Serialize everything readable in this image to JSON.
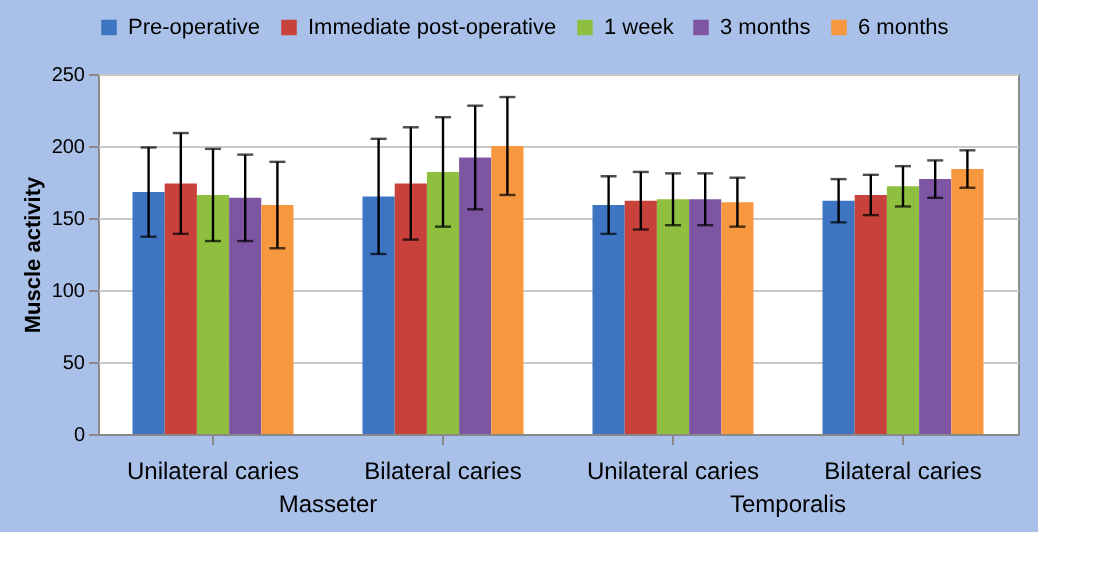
{
  "chart_data": {
    "type": "bar",
    "ylabel": "Muscle activity",
    "categories": [
      "Unilateral caries",
      "Bilateral caries",
      "Unilateral caries",
      "Bilateral caries"
    ],
    "annotations": [
      "Masseter",
      "Temporalis"
    ],
    "series": [
      {
        "name": "Pre-operative",
        "color": "#3d75c2",
        "values": [
          168,
          165,
          159,
          162
        ],
        "errors": [
          31,
          40,
          20,
          15
        ]
      },
      {
        "name": "Immediate post-operative",
        "color": "#c8413b",
        "values": [
          174,
          174,
          162,
          166
        ],
        "errors": [
          35,
          39,
          20,
          14
        ]
      },
      {
        "name": "1 week",
        "color": "#8fbf3f",
        "values": [
          166,
          182,
          163,
          172
        ],
        "errors": [
          32,
          38,
          18,
          14
        ]
      },
      {
        "name": "3 months",
        "color": "#7e55a3",
        "values": [
          164,
          192,
          163,
          177
        ],
        "errors": [
          30,
          36,
          18,
          13
        ]
      },
      {
        "name": "6 months",
        "color": "#f79840",
        "values": [
          159,
          200,
          161,
          184
        ],
        "errors": [
          30,
          34,
          17,
          13
        ]
      }
    ],
    "ylim": [
      0,
      250
    ],
    "yticks": [
      0,
      50,
      100,
      150,
      200,
      250
    ],
    "grid": "y",
    "legend": "top"
  }
}
